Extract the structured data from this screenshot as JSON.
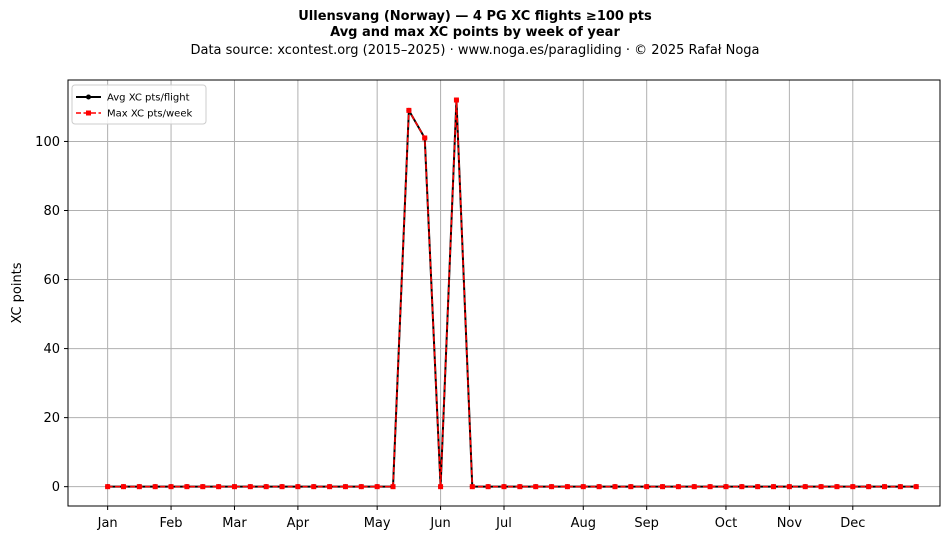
{
  "header": {
    "title_line1": "Ullensvang (Norway)  —  4 PG XC flights ≥100 pts",
    "title_line2": "Avg and max XC points by week of year",
    "subtitle": "Data source: xcontest.org (2015–2025)  ·  www.noga.es/paragliding  ·  © 2025 Rafał Noga"
  },
  "chart_data": {
    "type": "line",
    "title": "Ullensvang (Norway)  —  4 PG XC flights ≥100 pts",
    "subtitle": "Avg and max XC points by week of year",
    "xlabel": "",
    "ylabel": "XC points",
    "xlim": [
      -1.5,
      53.5
    ],
    "ylim": [
      -5.6,
      117.8
    ],
    "x": [
      1,
      2,
      3,
      4,
      5,
      6,
      7,
      8,
      9,
      10,
      11,
      12,
      13,
      14,
      15,
      16,
      17,
      18,
      19,
      20,
      21,
      22,
      23,
      24,
      25,
      26,
      27,
      28,
      29,
      30,
      31,
      32,
      33,
      34,
      35,
      36,
      37,
      38,
      39,
      40,
      41,
      42,
      43,
      44,
      45,
      46,
      47,
      48,
      49,
      50,
      51,
      52
    ],
    "x_ticks": [
      {
        "label": "Jan",
        "x": 1
      },
      {
        "label": "Feb",
        "x": 5
      },
      {
        "label": "Mar",
        "x": 9
      },
      {
        "label": "Apr",
        "x": 13
      },
      {
        "label": "May",
        "x": 18
      },
      {
        "label": "Jun",
        "x": 22
      },
      {
        "label": "Jul",
        "x": 26
      },
      {
        "label": "Aug",
        "x": 31
      },
      {
        "label": "Sep",
        "x": 35
      },
      {
        "label": "Oct",
        "x": 40
      },
      {
        "label": "Nov",
        "x": 44
      },
      {
        "label": "Dec",
        "x": 48
      }
    ],
    "y_ticks": [
      0,
      20,
      40,
      60,
      80,
      100
    ],
    "grid": true,
    "legend_position": "top-left",
    "series": [
      {
        "name": "Avg XC pts/flight",
        "color": "#000000",
        "style": "solid",
        "marker": "circle",
        "values": [
          0,
          0,
          0,
          0,
          0,
          0,
          0,
          0,
          0,
          0,
          0,
          0,
          0,
          0,
          0,
          0,
          0,
          0,
          0,
          109,
          101,
          0,
          112,
          0,
          0,
          0,
          0,
          0,
          0,
          0,
          0,
          0,
          0,
          0,
          0,
          0,
          0,
          0,
          0,
          0,
          0,
          0,
          0,
          0,
          0,
          0,
          0,
          0,
          0,
          0,
          0,
          0
        ]
      },
      {
        "name": "Max XC pts/week",
        "color": "#ff0000",
        "style": "dashed",
        "marker": "square",
        "values": [
          0,
          0,
          0,
          0,
          0,
          0,
          0,
          0,
          0,
          0,
          0,
          0,
          0,
          0,
          0,
          0,
          0,
          0,
          0,
          109,
          101,
          0,
          112,
          0,
          0,
          0,
          0,
          0,
          0,
          0,
          0,
          0,
          0,
          0,
          0,
          0,
          0,
          0,
          0,
          0,
          0,
          0,
          0,
          0,
          0,
          0,
          0,
          0,
          0,
          0,
          0,
          0
        ]
      }
    ]
  }
}
